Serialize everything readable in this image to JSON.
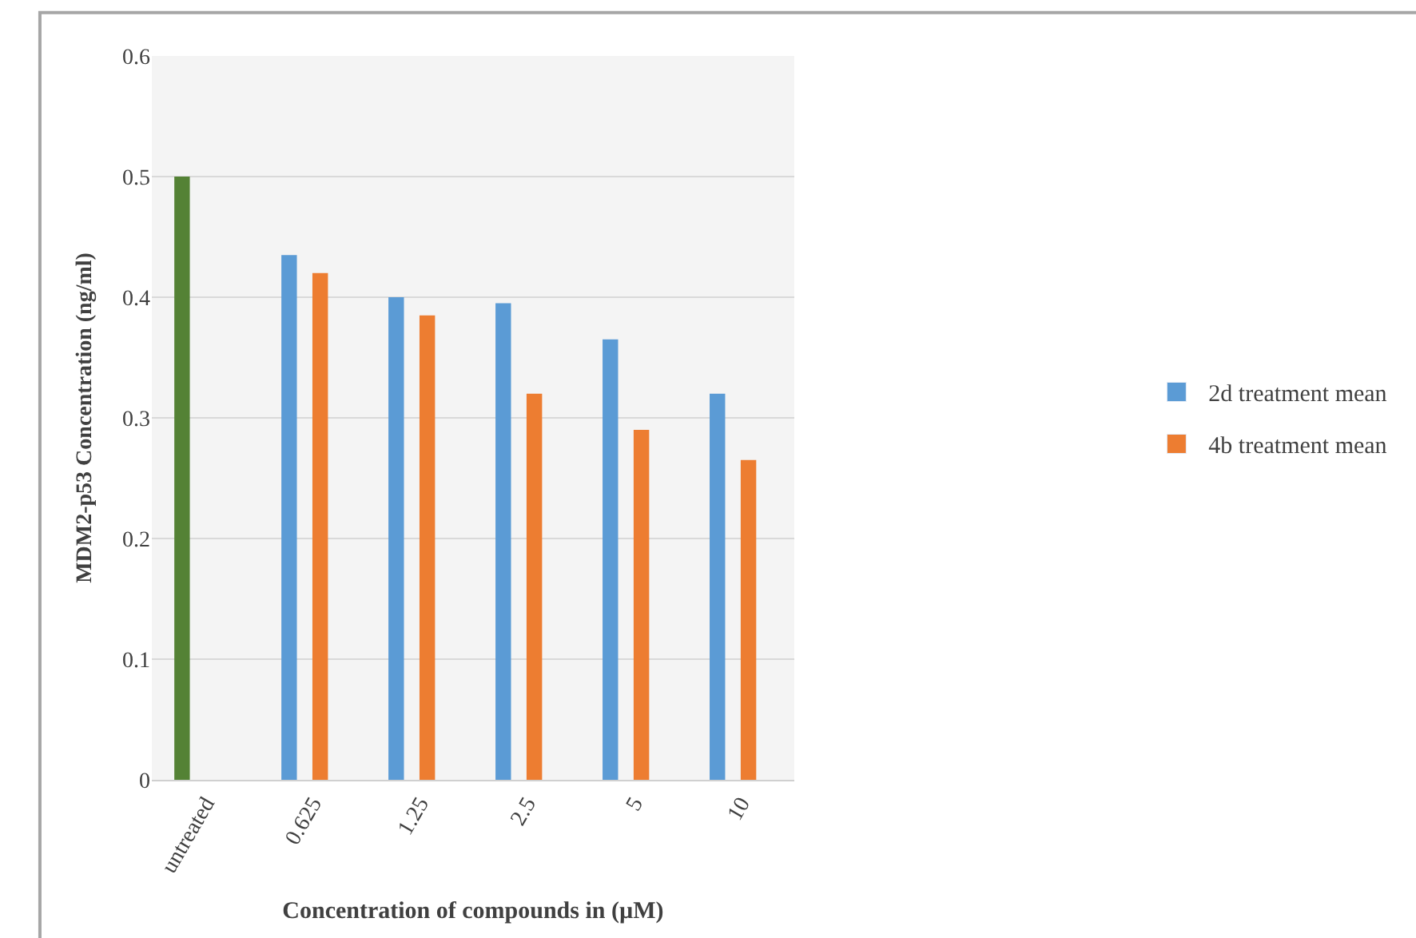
{
  "chart_data": {
    "type": "bar",
    "xlabel": "Concentration of compounds in (µM)",
    "ylabel": "MDM2-p53 Concentration (ng/ml)",
    "categories": [
      "untreated",
      "0.625",
      "1.25",
      "2.5",
      "5",
      "10"
    ],
    "series": [
      {
        "name": "2d treatment mean",
        "color": "#5b9bd5",
        "colors": [
          "#548235",
          "#5b9bd5",
          "#5b9bd5",
          "#5b9bd5",
          "#5b9bd5",
          "#5b9bd5"
        ],
        "values": [
          0.5,
          0.435,
          0.4,
          0.395,
          0.365,
          0.32
        ]
      },
      {
        "name": "4b treatment mean",
        "color": "#ed7d31",
        "values": [
          null,
          0.42,
          0.385,
          0.32,
          0.29,
          0.265
        ]
      }
    ],
    "ylim": [
      0,
      0.6
    ],
    "yticks": [
      0,
      0.1,
      0.2,
      0.3,
      0.4,
      0.5,
      0.6
    ],
    "grid": "y",
    "legend": "right"
  }
}
